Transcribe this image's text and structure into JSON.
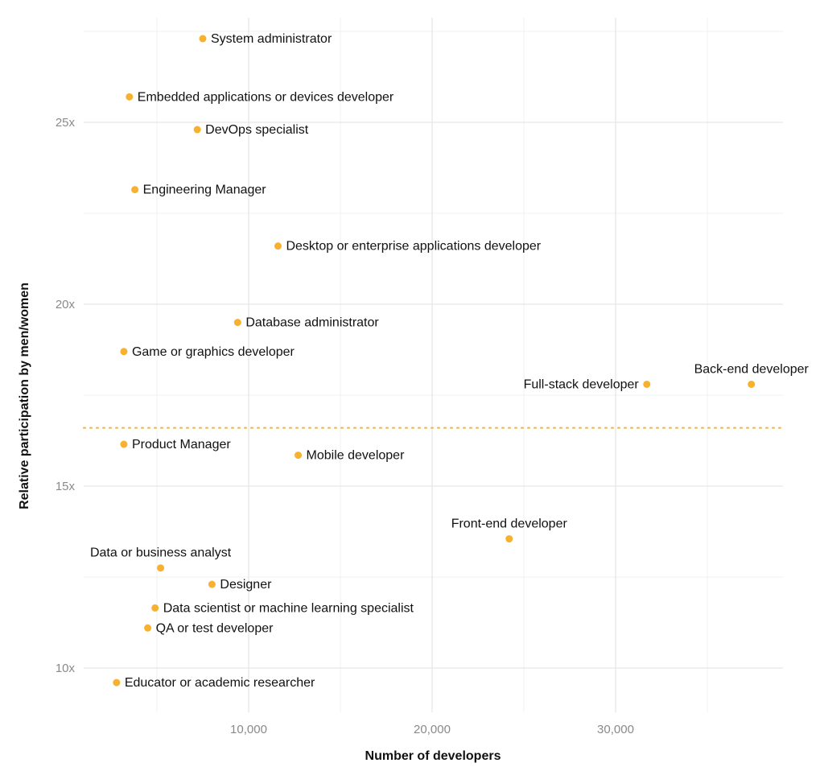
{
  "chart_data": {
    "type": "scatter",
    "title": "",
    "xlabel": "Number of developers",
    "ylabel": "Relative participation by men/women",
    "xlim": [
      1000,
      39000
    ],
    "ylim": [
      8.7,
      27.8
    ],
    "x_ticks": [
      10000,
      20000,
      30000
    ],
    "x_tick_labels": [
      "10,000",
      "20,000",
      "30,000"
    ],
    "x_minor_ticks": [
      5000,
      15000,
      25000,
      35000
    ],
    "y_ticks": [
      10,
      15,
      20,
      25
    ],
    "y_tick_labels": [
      "10x",
      "15x",
      "20x",
      "25x"
    ],
    "y_minor_ticks": [
      12.5,
      17.5,
      22.5,
      27.5
    ],
    "grid": true,
    "reference_line": {
      "y": 16.6,
      "style": "dotted"
    },
    "point_color": "#F7B12F",
    "grid_color": "#e6e6e6",
    "points": [
      {
        "label": "System administrator",
        "x": 7500,
        "y": 27.3,
        "label_pos": "right"
      },
      {
        "label": "Embedded applications or devices developer",
        "x": 3500,
        "y": 25.7,
        "label_pos": "right"
      },
      {
        "label": "DevOps specialist",
        "x": 7200,
        "y": 24.8,
        "label_pos": "right"
      },
      {
        "label": "Engineering Manager",
        "x": 3800,
        "y": 23.15,
        "label_pos": "right"
      },
      {
        "label": "Desktop or enterprise applications developer",
        "x": 11600,
        "y": 21.6,
        "label_pos": "right"
      },
      {
        "label": "Database administrator",
        "x": 9400,
        "y": 19.5,
        "label_pos": "right"
      },
      {
        "label": "Game or graphics developer",
        "x": 3200,
        "y": 18.7,
        "label_pos": "right"
      },
      {
        "label": "Full-stack developer",
        "x": 31700,
        "y": 17.8,
        "label_pos": "left"
      },
      {
        "label": "Back-end developer",
        "x": 37400,
        "y": 17.8,
        "label_pos": "above"
      },
      {
        "label": "Product Manager",
        "x": 3200,
        "y": 16.15,
        "label_pos": "right"
      },
      {
        "label": "Mobile developer",
        "x": 12700,
        "y": 15.85,
        "label_pos": "right"
      },
      {
        "label": "Front-end developer",
        "x": 24200,
        "y": 13.55,
        "label_pos": "above"
      },
      {
        "label": "Data or business analyst",
        "x": 5200,
        "y": 12.75,
        "label_pos": "above"
      },
      {
        "label": "Designer",
        "x": 8000,
        "y": 12.3,
        "label_pos": "right"
      },
      {
        "label": "Data scientist or machine learning specialist",
        "x": 4900,
        "y": 11.65,
        "label_pos": "right"
      },
      {
        "label": "QA or test developer",
        "x": 4500,
        "y": 11.1,
        "label_pos": "right"
      },
      {
        "label": "Educator or academic researcher",
        "x": 2800,
        "y": 9.6,
        "label_pos": "right"
      }
    ]
  }
}
